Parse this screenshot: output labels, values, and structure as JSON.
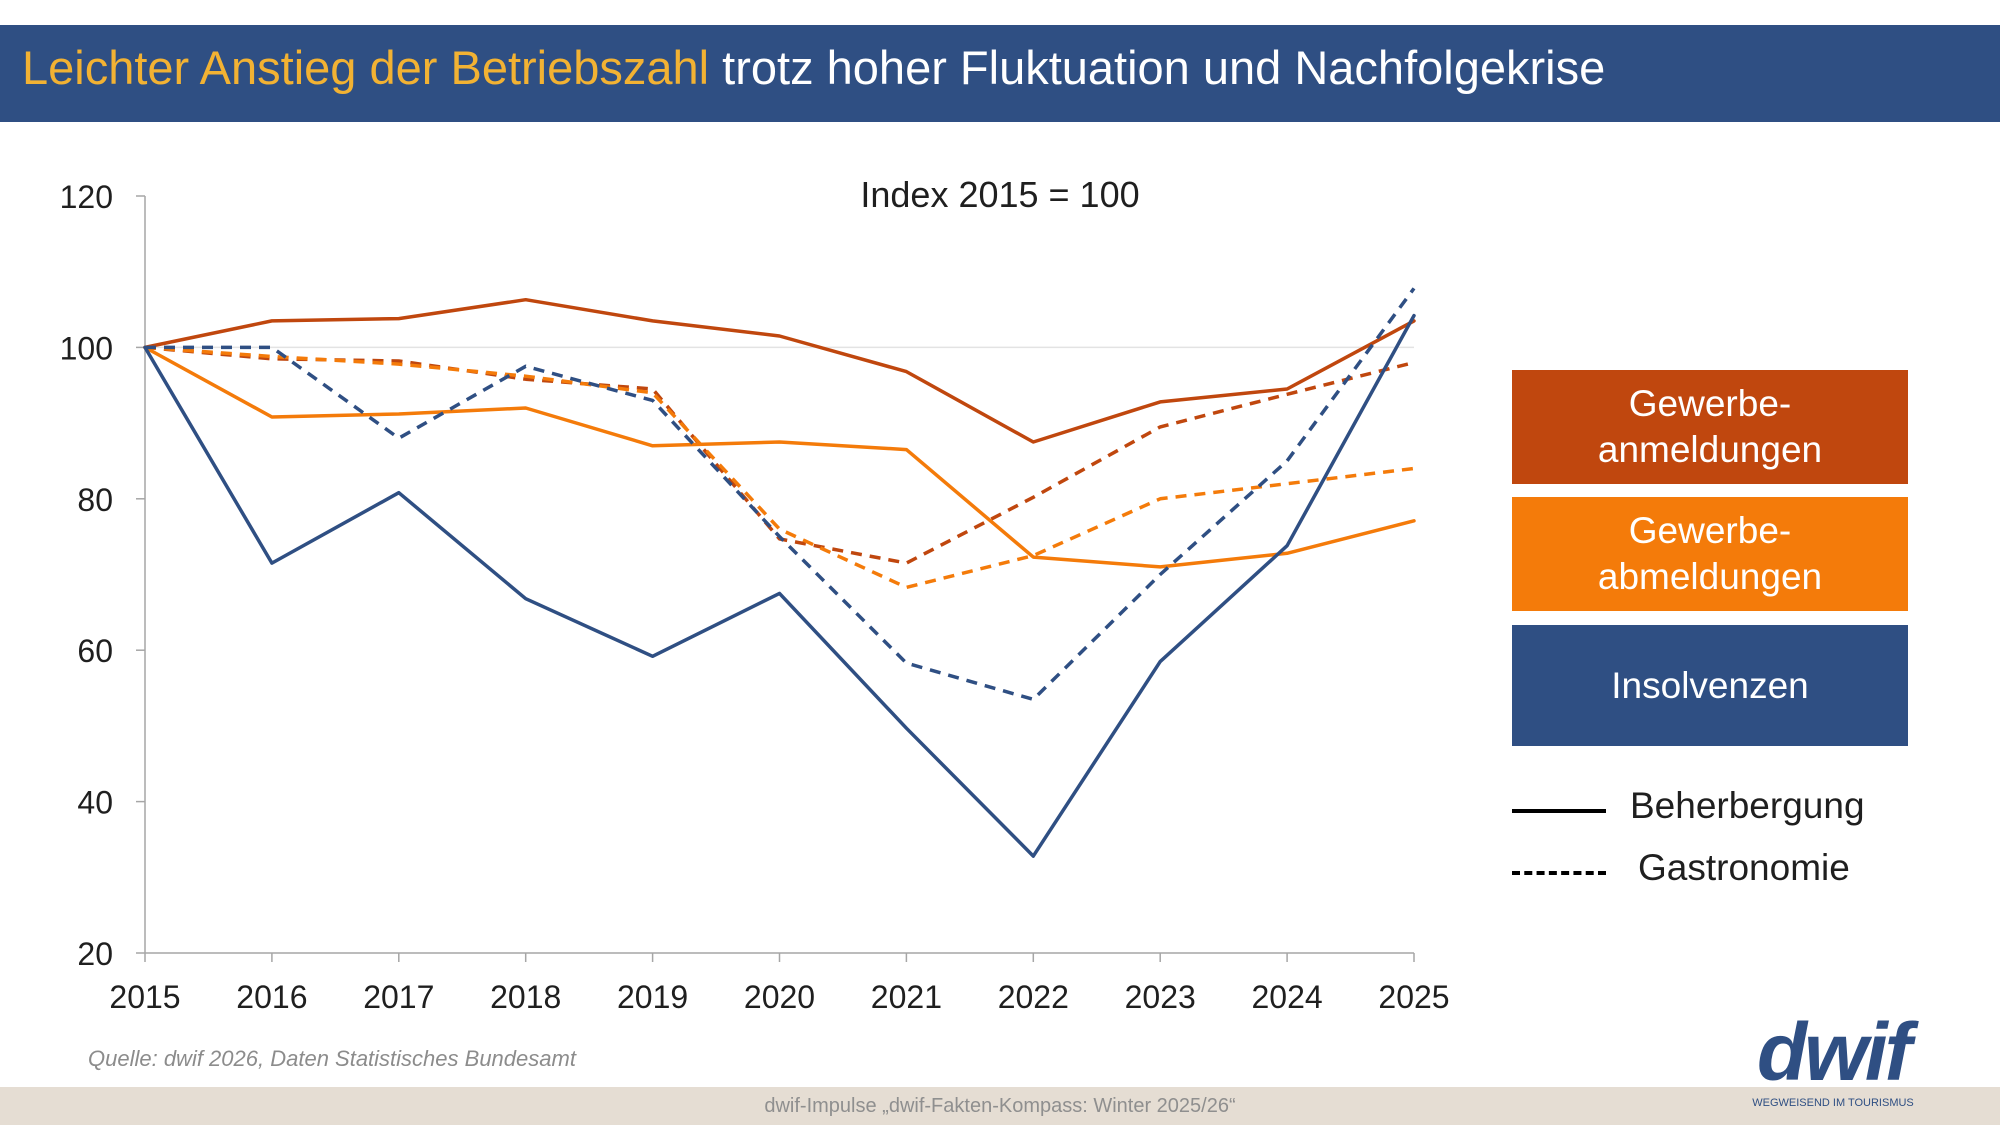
{
  "header": {
    "title_highlight": "Leichter Anstieg der Betriebszahl",
    "title_rest": " trotz hoher Fluktuation und Nachfolgekrise"
  },
  "colors": {
    "header_bg": "#2f4f83",
    "highlight": "#f2b233",
    "gewerbeanmeldungen": "#c0470e",
    "gewerbeabmeldungen": "#f47b0a",
    "insolvenzen": "#2f4f83",
    "footer_bg": "#e5ddd3"
  },
  "chart_data": {
    "type": "line",
    "title": "Index 2015 = 100",
    "xlabel": "",
    "ylabel": "",
    "x": [
      "2015",
      "2016",
      "2017",
      "2018",
      "2019",
      "2020",
      "2021",
      "2022",
      "2023",
      "2024",
      "2025"
    ],
    "ylim": [
      20,
      120
    ],
    "yticks": [
      "20",
      "40",
      "60",
      "80",
      "100",
      "120"
    ],
    "gridlines": [
      100
    ],
    "series": [
      {
        "group": "Gewerbeanmeldungen",
        "style": "Beherbergung",
        "color": "#c0470e",
        "dash": false,
        "values": [
          100,
          103.5,
          103.8,
          106.3,
          103.5,
          101.5,
          96.8,
          87.5,
          92.8,
          94.5,
          103.5
        ]
      },
      {
        "group": "Gewerbeanmeldungen",
        "style": "Gastronomie",
        "color": "#c0470e",
        "dash": true,
        "values": [
          100,
          98.5,
          98.2,
          95.8,
          94.5,
          74.7,
          71.5,
          80.2,
          89.5,
          93.8,
          98.0
        ]
      },
      {
        "group": "Gewerbeabmeldungen",
        "style": "Beherbergung",
        "color": "#f47b0a",
        "dash": false,
        "values": [
          100,
          90.8,
          91.2,
          92.0,
          87.0,
          87.5,
          86.5,
          72.3,
          71.0,
          72.8,
          77.1
        ]
      },
      {
        "group": "Gewerbeabmeldungen",
        "style": "Gastronomie",
        "color": "#f47b0a",
        "dash": true,
        "values": [
          100,
          98.8,
          97.8,
          96.2,
          94.0,
          76.0,
          68.3,
          72.5,
          80.0,
          82.0,
          84.0
        ]
      },
      {
        "group": "Insolvenzen",
        "style": "Beherbergung",
        "color": "#2f4f83",
        "dash": false,
        "values": [
          100,
          71.5,
          80.8,
          66.8,
          59.2,
          67.5,
          49.7,
          32.8,
          58.5,
          73.8,
          104.2
        ]
      },
      {
        "group": "Insolvenzen",
        "style": "Gastronomie",
        "color": "#2f4f83",
        "dash": true,
        "values": [
          100,
          100.0,
          88.0,
          97.5,
          93.0,
          75.0,
          58.3,
          53.5,
          70.0,
          85.0,
          107.8
        ]
      }
    ],
    "legend": {
      "placement": "right",
      "boxes": [
        {
          "label": "Gewerbe-\nanmeldungen",
          "color": "#c0470e"
        },
        {
          "label": "Gewerbe-\nabmeldungen",
          "color": "#f47b0a"
        },
        {
          "label": "Insolvenzen",
          "color": "#2f4f83"
        }
      ],
      "styles": [
        {
          "label": "Beherbergung",
          "dash": false
        },
        {
          "label": "Gastronomie",
          "dash": true
        }
      ]
    }
  },
  "source": "Quelle: dwif 2026, Daten Statistisches Bundesamt",
  "footer": "dwif-Impulse „dwif-Fakten-Kompass: Winter 2025/26“",
  "logo": {
    "word": "dwif",
    "tagline": "WEGWEISEND IM TOURISMUS"
  }
}
